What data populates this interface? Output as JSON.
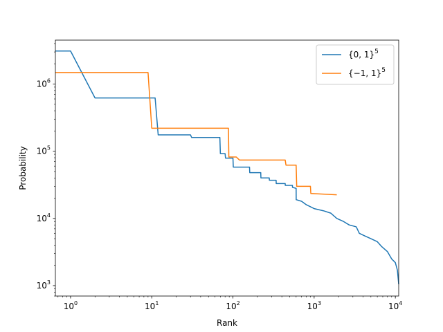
{
  "chart_data": {
    "type": "line",
    "xlabel": "Rank",
    "ylabel": "Probability",
    "xscale": "log",
    "yscale": "log",
    "xlim": [
      0.65,
      11000
    ],
    "ylim": [
      700,
      4500000
    ],
    "grid": false,
    "legend_position": "top-right",
    "x_ticks": [
      {
        "value": 1,
        "base": "10",
        "exp": "0"
      },
      {
        "value": 10,
        "base": "10",
        "exp": "1"
      },
      {
        "value": 100,
        "base": "10",
        "exp": "2"
      },
      {
        "value": 1000,
        "base": "10",
        "exp": "3"
      },
      {
        "value": 10000,
        "base": "10",
        "exp": "4"
      }
    ],
    "y_ticks": [
      {
        "value": 1000,
        "base": "10",
        "exp": "3"
      },
      {
        "value": 10000,
        "base": "10",
        "exp": "4"
      },
      {
        "value": 100000,
        "base": "10",
        "exp": "5"
      },
      {
        "value": 1000000,
        "base": "10",
        "exp": "6"
      }
    ],
    "series": [
      {
        "name": "{0, 1}",
        "name_superscript": "5",
        "color": "#1f77b4",
        "points": [
          [
            0.65,
            3100000
          ],
          [
            1,
            3100000
          ],
          [
            2,
            620000
          ],
          [
            11,
            620000
          ],
          [
            12,
            175000
          ],
          [
            30,
            175000
          ],
          [
            31,
            160000
          ],
          [
            69,
            160000
          ],
          [
            70,
            92000
          ],
          [
            80,
            92000
          ],
          [
            81,
            79000
          ],
          [
            100,
            79000
          ],
          [
            101,
            58000
          ],
          [
            160,
            58000
          ],
          [
            161,
            48000
          ],
          [
            220,
            48000
          ],
          [
            221,
            40000
          ],
          [
            280,
            40000
          ],
          [
            281,
            37000
          ],
          [
            340,
            37000
          ],
          [
            341,
            33000
          ],
          [
            440,
            33000
          ],
          [
            441,
            31000
          ],
          [
            540,
            31000
          ],
          [
            541,
            29000
          ],
          [
            600,
            28000
          ],
          [
            601,
            19000
          ],
          [
            700,
            18000
          ],
          [
            800,
            16000
          ],
          [
            1000,
            14000
          ],
          [
            1300,
            13000
          ],
          [
            1600,
            12000
          ],
          [
            1900,
            10000
          ],
          [
            2300,
            9000
          ],
          [
            2700,
            8000
          ],
          [
            3300,
            7500
          ],
          [
            3600,
            6000
          ],
          [
            4200,
            5500
          ],
          [
            5000,
            5000
          ],
          [
            6000,
            4500
          ],
          [
            6800,
            3800
          ],
          [
            8000,
            3200
          ],
          [
            9000,
            2500
          ],
          [
            10000,
            2200
          ],
          [
            10600,
            1700
          ],
          [
            11000,
            1050
          ]
        ]
      },
      {
        "name": "{−1, 1}",
        "name_superscript": "5",
        "color": "#ff7f0e",
        "points": [
          [
            0.65,
            1480000
          ],
          [
            9,
            1480000
          ],
          [
            10,
            220000
          ],
          [
            88,
            220000
          ],
          [
            89,
            82000
          ],
          [
            110,
            82000
          ],
          [
            120,
            74000
          ],
          [
            440,
            74000
          ],
          [
            450,
            62000
          ],
          [
            600,
            62000
          ],
          [
            610,
            30000
          ],
          [
            900,
            30000
          ],
          [
            910,
            23500
          ],
          [
            1900,
            22500
          ]
        ]
      }
    ]
  }
}
